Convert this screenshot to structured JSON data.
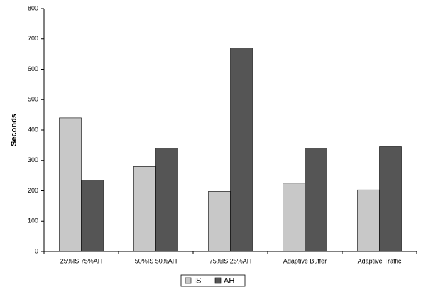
{
  "chart_data": {
    "type": "grouped_bar",
    "y_label": "Seconds",
    "categories": [
      "25%IS 75%AH",
      "50%IS 50%AH",
      "75%IS 25%AH",
      "Adaptive Buffer",
      "Adaptive Traffic"
    ],
    "series": [
      {
        "name": "IS",
        "color": "#c8c8c8",
        "values": [
          440,
          280,
          198,
          225,
          203
        ]
      },
      {
        "name": "AH",
        "color": "#555555",
        "values": [
          235,
          340,
          670,
          340,
          345
        ]
      }
    ],
    "ylim": [
      0,
      800
    ],
    "yticks": [
      0,
      100,
      200,
      300,
      400,
      500,
      600,
      700,
      800
    ],
    "grid": false,
    "legend": "bottom"
  }
}
